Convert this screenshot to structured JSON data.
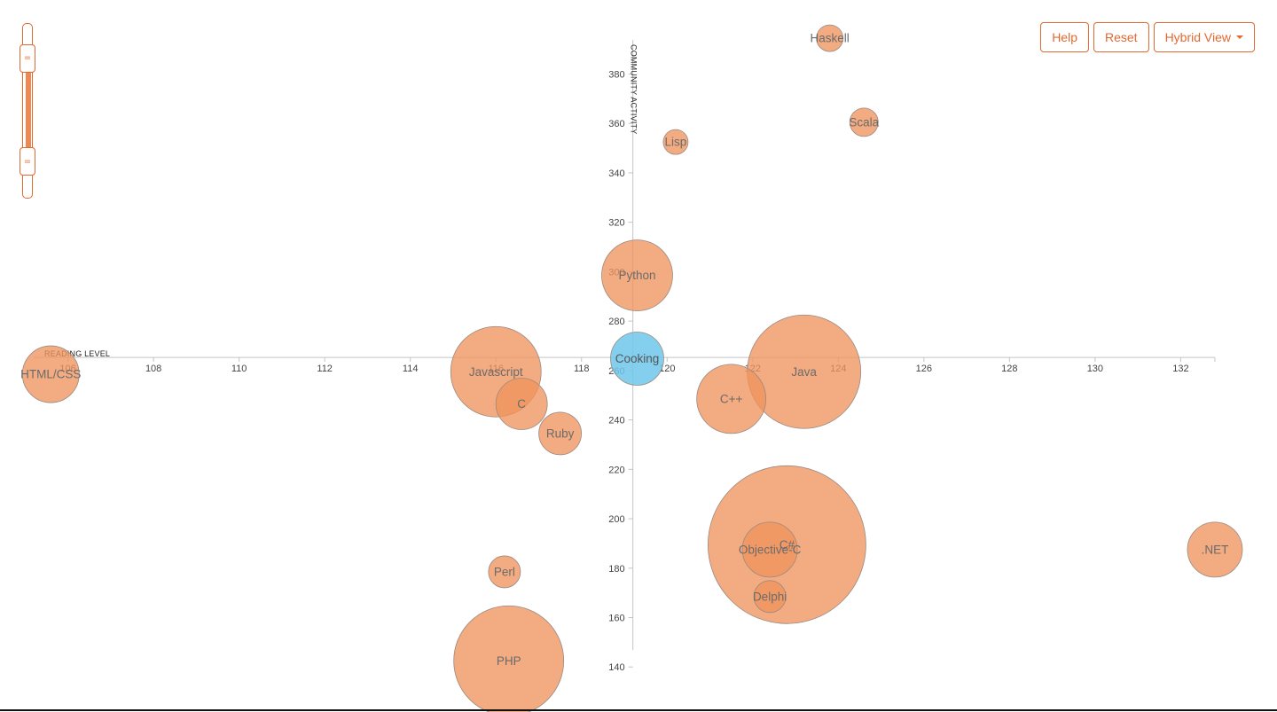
{
  "toolbar": {
    "help_label": "Help",
    "reset_label": "Reset",
    "view_label": "Hybrid View"
  },
  "slider": {
    "low_handle_glyph": "=",
    "high_handle_glyph": "=",
    "range_low": 0.2,
    "range_high": 0.79
  },
  "colors": {
    "accent": "#e2692f",
    "bubble": "#f0945e",
    "bubble_highlight": "#6ec7ea",
    "bubble_text": "#6b6b6b",
    "bubble_text_highlight": "#555555"
  },
  "chart_data": {
    "type": "scatter",
    "title": "",
    "xlabel": "READING LEVEL",
    "ylabel": "COMMUNITY ACTIVITY",
    "xlim": [
      105.2,
      132.8
    ],
    "ylim": [
      139,
      401
    ],
    "x_ticks": [
      106,
      108,
      110,
      112,
      114,
      116,
      118,
      120,
      122,
      124,
      126,
      128,
      130,
      132
    ],
    "y_ticks": [
      140,
      160,
      180,
      200,
      220,
      240,
      260,
      280,
      300,
      320,
      340,
      360,
      380
    ],
    "x_axis_crosses_y": 265.3,
    "y_axis_crosses_x": 119.2,
    "grid": false,
    "points": [
      {
        "name": "C#",
        "x": 122.8,
        "y": 189.5,
        "size": 89,
        "highlight": false
      },
      {
        "name": "Java",
        "x": 123.2,
        "y": 259.5,
        "size": 64,
        "highlight": false
      },
      {
        "name": "PHP",
        "x": 116.3,
        "y": 142.5,
        "size": 62,
        "highlight": false
      },
      {
        "name": "Javascript",
        "x": 116.0,
        "y": 259.5,
        "size": 51,
        "highlight": false
      },
      {
        "name": "Python",
        "x": 119.3,
        "y": 298.5,
        "size": 40,
        "highlight": false
      },
      {
        "name": "C++",
        "x": 121.5,
        "y": 248.5,
        "size": 39,
        "highlight": false
      },
      {
        "name": "HTML/CSS",
        "x": 105.6,
        "y": 258.5,
        "size": 32,
        "highlight": false
      },
      {
        "name": ".NET",
        "x": 132.8,
        "y": 187.5,
        "size": 31,
        "highlight": false
      },
      {
        "name": "Cooking",
        "x": 119.3,
        "y": 264.8,
        "size": 30,
        "highlight": true
      },
      {
        "name": "Objective-C",
        "x": 122.4,
        "y": 187.5,
        "size": 31,
        "highlight": false
      },
      {
        "name": "C",
        "x": 116.6,
        "y": 246.5,
        "size": 29,
        "highlight": false
      },
      {
        "name": "Ruby",
        "x": 117.5,
        "y": 234.5,
        "size": 24,
        "highlight": false
      },
      {
        "name": "Delphi",
        "x": 122.4,
        "y": 168.5,
        "size": 18,
        "highlight": false
      },
      {
        "name": "Perl",
        "x": 116.2,
        "y": 178.5,
        "size": 18,
        "highlight": false
      },
      {
        "name": "Lisp",
        "x": 120.2,
        "y": 352.5,
        "size": 14,
        "highlight": false
      },
      {
        "name": "Scala",
        "x": 124.6,
        "y": 360.5,
        "size": 16,
        "highlight": false
      },
      {
        "name": "Haskell",
        "x": 123.8,
        "y": 394.5,
        "size": 15,
        "highlight": false
      }
    ]
  }
}
